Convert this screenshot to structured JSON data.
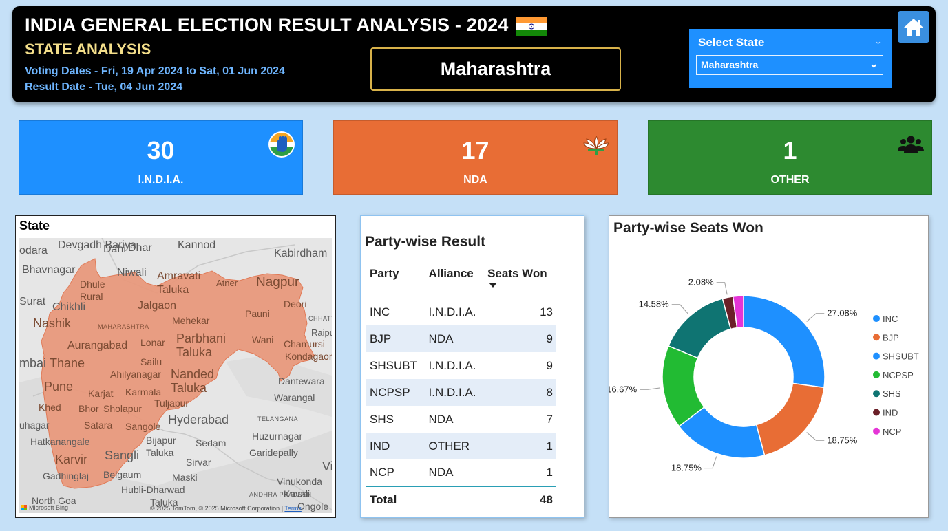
{
  "header": {
    "title": "INDIA GENERAL ELECTION RESULT ANALYSIS - 2024",
    "subtitle": "STATE ANALYSIS",
    "voting_dates": "Voting Dates - Fri, 19 Apr 2024 to Sat, 01 Jun 2024",
    "result_date": "Result Date - Tue, 04 Jun 2024",
    "selected_state_display": "Maharashtra",
    "flag_icon": "india-flag-icon",
    "home_icon": "home-icon"
  },
  "slicer": {
    "label": "Select State",
    "value": "Maharashtra"
  },
  "cards": [
    {
      "value": "30",
      "label": "I.N.D.I.A.",
      "icon": "congress-hand-icon",
      "color": "#1e90ff"
    },
    {
      "value": "17",
      "label": "NDA",
      "icon": "bjp-lotus-icon",
      "color": "#e86d35"
    },
    {
      "value": "1",
      "label": "OTHER",
      "icon": "people-group-icon",
      "color": "#2d8a30"
    }
  ],
  "map": {
    "title": "State",
    "labels": [
      "Devgadh Bariya",
      "Dahi",
      "Dhar",
      "Kannod",
      "Kabirdham",
      "odara",
      "Bhavnagar",
      "Niwali",
      "Amravati Taluka",
      "Atner",
      "Nagpur",
      "Surat",
      "Chikhli",
      "Dhule Rural",
      "Jalgaon",
      "Deori",
      "Nashik",
      "MAHARASHTRA",
      "Mehekar",
      "Pauni",
      "CHHATTI",
      "Raipur",
      "Aurangabad",
      "Lonar",
      "Parbhani Taluka",
      "Wani",
      "Chamursi",
      "Kondagaon",
      "mbai",
      "Thane",
      "Sailu",
      "Ahilyanagar",
      "Nanded Taluka",
      "Dantewara",
      "Pune",
      "Karjat",
      "Karmala",
      "Warangal",
      "Khed",
      "Bhor",
      "Sholapur",
      "Tuljapur",
      "Satara",
      "Hyderabad",
      "TELANGANA",
      "uhagar",
      "Sangole",
      "Hatkanangale",
      "Bijapur",
      "Taluka",
      "Sedam",
      "Huzurnagar",
      "Karvir",
      "Sangli",
      "Garidepally",
      "Sirvar",
      "Vijay",
      "Gadhinglaj",
      "Belgaum",
      "Maski",
      "Vinukonda",
      "Hubli-Dharwad",
      "Taluka",
      "ANDHRA PRADESH",
      "Kavali",
      "North Goa",
      "Ongole"
    ],
    "credit": "© 2025 TomTom, © 2025 Microsoft Corporation",
    "terms": "Terms",
    "ms_brand": "Microsoft Bing",
    "state_fill": "#e8977a"
  },
  "table": {
    "title": "Party-wise Result",
    "headers": [
      "Party",
      "Alliance",
      "Seats Won"
    ],
    "rows": [
      {
        "party": "INC",
        "alliance": "I.N.D.I.A.",
        "seats": "13"
      },
      {
        "party": "BJP",
        "alliance": "NDA",
        "seats": "9"
      },
      {
        "party": "SHSUBT",
        "alliance": "I.N.D.I.A.",
        "seats": "9"
      },
      {
        "party": "NCPSP",
        "alliance": "I.N.D.I.A.",
        "seats": "8"
      },
      {
        "party": "SHS",
        "alliance": "NDA",
        "seats": "7"
      },
      {
        "party": "IND",
        "alliance": "OTHER",
        "seats": "1"
      },
      {
        "party": "NCP",
        "alliance": "NDA",
        "seats": "1"
      }
    ],
    "total_label": "Total",
    "total_value": "48"
  },
  "donut": {
    "title": "Party-wise Seats Won"
  },
  "chart_data": {
    "type": "pie",
    "title": "Party-wise Seats Won",
    "donut": true,
    "legend_position": "right",
    "categories": [
      "INC",
      "BJP",
      "SHSUBT",
      "NCPSP",
      "SHS",
      "IND",
      "NCP"
    ],
    "values": [
      13,
      9,
      9,
      8,
      7,
      1,
      1
    ],
    "percent_labels": [
      "27.08%",
      "18.75%",
      "18.75%",
      "16.67%",
      "14.58%",
      "2.08%",
      ""
    ],
    "colors": [
      "#1e90ff",
      "#e86d35",
      "#1e90ff",
      "#22bb33",
      "#0f7472",
      "#6b2028",
      "#e535d6"
    ]
  }
}
